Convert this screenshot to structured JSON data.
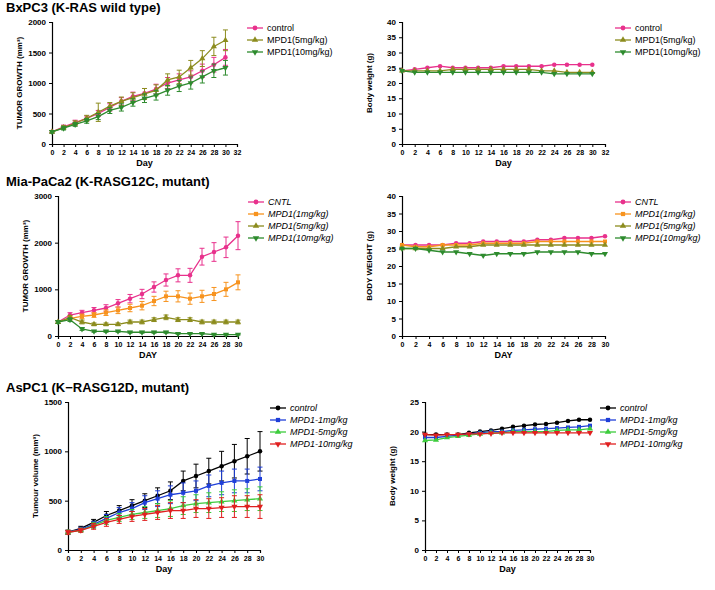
{
  "chart_data": [
    {
      "type": "line",
      "title": "BxPC3 (K-RAS wild type)",
      "x_label": "Day",
      "y_label": "TUMOR GROWTH (mm³)",
      "xlim": [
        0,
        32
      ],
      "xticks": [
        0,
        2,
        4,
        6,
        8,
        10,
        12,
        14,
        16,
        18,
        20,
        22,
        24,
        26,
        28,
        30,
        32
      ],
      "ylim": [
        0,
        2000
      ],
      "yticks": [
        0,
        500,
        1000,
        1500,
        2000
      ],
      "grid": false,
      "legend": "right",
      "x": [
        0,
        2,
        4,
        6,
        8,
        10,
        12,
        14,
        16,
        18,
        20,
        22,
        24,
        26,
        28,
        30
      ],
      "series": [
        {
          "name": "control",
          "color": "#e8318c",
          "marker": "circle",
          "values": [
            200,
            280,
            350,
            420,
            500,
            600,
            700,
            780,
            830,
            900,
            1000,
            1050,
            1100,
            1200,
            1300,
            1420
          ],
          "errors": [
            20,
            30,
            40,
            40,
            50,
            60,
            60,
            70,
            80,
            80,
            90,
            100,
            100,
            110,
            120,
            130
          ]
        },
        {
          "name": "MPD1(5mg/kg)",
          "color": "#8c8c1e",
          "marker": "triangle",
          "values": [
            200,
            270,
            340,
            420,
            520,
            620,
            700,
            760,
            820,
            880,
            1050,
            1100,
            1250,
            1400,
            1600,
            1700
          ],
          "errors": [
            20,
            30,
            40,
            50,
            150,
            60,
            70,
            80,
            90,
            90,
            100,
            110,
            120,
            130,
            150,
            170
          ]
        },
        {
          "name": "MPD1(10mg/kg)",
          "color": "#2e8b2e",
          "marker": "triangle-down",
          "values": [
            200,
            260,
            320,
            380,
            450,
            550,
            600,
            680,
            750,
            800,
            880,
            950,
            1000,
            1100,
            1200,
            1250
          ],
          "errors": [
            20,
            30,
            30,
            40,
            50,
            50,
            60,
            60,
            70,
            80,
            80,
            90,
            100,
            100,
            110,
            120
          ]
        }
      ]
    },
    {
      "type": "line",
      "x_label": "Day",
      "y_label": "Body weight (g)",
      "xlim": [
        0,
        32
      ],
      "xticks": [
        0,
        2,
        4,
        6,
        8,
        10,
        12,
        14,
        16,
        18,
        20,
        22,
        24,
        26,
        28,
        30,
        32
      ],
      "ylim": [
        0,
        40
      ],
      "yticks": [
        0,
        5,
        10,
        15,
        20,
        25,
        30,
        35,
        40
      ],
      "grid": false,
      "legend": "right",
      "x": [
        0,
        2,
        4,
        6,
        8,
        10,
        12,
        14,
        16,
        18,
        20,
        22,
        24,
        26,
        28,
        30
      ],
      "series": [
        {
          "name": "control",
          "color": "#e8318c",
          "marker": "circle",
          "values": [
            24,
            24.5,
            25,
            25.5,
            25,
            25,
            25,
            25,
            25.5,
            25.5,
            25.5,
            25.5,
            26,
            26,
            26,
            26
          ]
        },
        {
          "name": "MPD1(5mg/kg)",
          "color": "#8c8c1e",
          "marker": "triangle",
          "values": [
            24,
            24,
            24,
            24,
            24.5,
            24.5,
            24.5,
            24.5,
            24.5,
            24.5,
            24.5,
            24,
            24,
            23.5,
            23.5,
            23.5
          ]
        },
        {
          "name": "MPD1(10mg/kg)",
          "color": "#2e8b2e",
          "marker": "triangle-down",
          "values": [
            24,
            23.5,
            23.5,
            23.5,
            23.5,
            23.5,
            23.5,
            23.5,
            23.5,
            23.5,
            23.5,
            23.5,
            23,
            23,
            23,
            23
          ]
        }
      ]
    },
    {
      "type": "line",
      "title": "Mia-PaCa2 (K-RASG12C, mutant)",
      "x_label": "DAY",
      "y_label": "TUMOR GROWTH (mm³)",
      "xlim": [
        0,
        30
      ],
      "xticks": [
        0,
        2,
        4,
        6,
        8,
        10,
        12,
        14,
        16,
        18,
        20,
        22,
        24,
        26,
        28,
        30
      ],
      "ylim": [
        0,
        3000
      ],
      "yticks": [
        0,
        1000,
        2000,
        3000
      ],
      "grid": false,
      "legend": "right",
      "x": [
        0,
        2,
        4,
        6,
        8,
        10,
        12,
        14,
        16,
        18,
        20,
        22,
        24,
        26,
        28,
        30
      ],
      "series": [
        {
          "name": "CNTL",
          "color": "#e8318c",
          "marker": "circle",
          "values": [
            300,
            450,
            500,
            550,
            600,
            700,
            800,
            900,
            1050,
            1200,
            1300,
            1300,
            1700,
            1800,
            1900,
            2150
          ],
          "errors": [
            30,
            50,
            50,
            60,
            70,
            80,
            90,
            100,
            110,
            130,
            140,
            150,
            180,
            200,
            220,
            300
          ]
        },
        {
          "name": "MPD1(1mg/kg)",
          "color": "#f7931e",
          "marker": "square",
          "values": [
            300,
            380,
            420,
            450,
            500,
            550,
            600,
            650,
            750,
            850,
            850,
            800,
            850,
            900,
            1000,
            1150
          ],
          "errors": [
            30,
            40,
            50,
            50,
            60,
            70,
            80,
            90,
            100,
            110,
            120,
            120,
            130,
            140,
            150,
            160
          ]
        },
        {
          "name": "MPD1(5mg/kg)",
          "color": "#8c8c1e",
          "marker": "triangle",
          "values": [
            300,
            400,
            300,
            250,
            250,
            250,
            300,
            300,
            350,
            400,
            350,
            350,
            300,
            300,
            300,
            300
          ],
          "errors": [
            30,
            40,
            40,
            30,
            30,
            30,
            40,
            40,
            40,
            50,
            40,
            40,
            40,
            40,
            40,
            40
          ]
        },
        {
          "name": "MPD1(10mg/kg)",
          "color": "#2e8b2e",
          "marker": "triangle-down",
          "values": [
            300,
            350,
            150,
            100,
            100,
            100,
            80,
            80,
            80,
            80,
            50,
            50,
            50,
            30,
            30,
            30
          ],
          "errors": [
            30,
            40,
            30,
            20,
            20,
            20,
            20,
            20,
            20,
            20,
            10,
            10,
            10,
            10,
            10,
            10
          ]
        }
      ]
    },
    {
      "type": "line",
      "x_label": "DAY",
      "y_label": "BODY WEIGHT (g)",
      "xlim": [
        0,
        30
      ],
      "xticks": [
        0,
        2,
        4,
        6,
        8,
        10,
        12,
        14,
        16,
        18,
        20,
        22,
        24,
        26,
        28,
        30
      ],
      "ylim": [
        0,
        40
      ],
      "yticks": [
        0,
        5,
        10,
        15,
        20,
        25,
        30,
        35,
        40
      ],
      "grid": false,
      "legend": "right",
      "x": [
        0,
        2,
        4,
        6,
        8,
        10,
        12,
        14,
        16,
        18,
        20,
        22,
        24,
        26,
        28,
        30
      ],
      "series": [
        {
          "name": "CNTL",
          "color": "#e8318c",
          "marker": "circle",
          "values": [
            26,
            26,
            26,
            26,
            26.5,
            26.5,
            27,
            27,
            27,
            27,
            27.5,
            27.5,
            28,
            28,
            28,
            28.5
          ]
        },
        {
          "name": "MPD1(1mg/kg)",
          "color": "#f7931e",
          "marker": "square",
          "values": [
            26,
            25.5,
            25.5,
            26,
            26,
            26,
            26.5,
            26.5,
            26.5,
            26.5,
            27,
            27,
            27,
            27,
            27,
            27
          ]
        },
        {
          "name": "MPD1(5mg/kg)",
          "color": "#8c8c1e",
          "marker": "triangle",
          "values": [
            25,
            25,
            25,
            25,
            25.5,
            25.5,
            26,
            26,
            26,
            26,
            26,
            26,
            26,
            26,
            26,
            26
          ]
        },
        {
          "name": "MPD1(10mg/kg)",
          "color": "#2e8b2e",
          "marker": "triangle-down",
          "values": [
            25,
            25,
            24.5,
            24,
            24,
            23.5,
            23,
            23.5,
            23.5,
            23.5,
            24,
            24,
            24,
            24,
            23.5,
            23.5
          ]
        }
      ]
    },
    {
      "type": "line",
      "title": "AsPC1 (K−RASG12D, mutant)",
      "x_label": "Day",
      "y_label": "Tumour volume (mm³)",
      "xlim": [
        0,
        30
      ],
      "xticks": [
        0,
        2,
        4,
        6,
        8,
        10,
        12,
        14,
        16,
        18,
        20,
        22,
        24,
        26,
        28,
        30
      ],
      "ylim": [
        0,
        1500
      ],
      "yticks": [
        0,
        500,
        1000,
        1500
      ],
      "grid": false,
      "legend": "right",
      "x": [
        0,
        2,
        4,
        6,
        8,
        10,
        12,
        14,
        16,
        18,
        20,
        22,
        24,
        26,
        28,
        30
      ],
      "series": [
        {
          "name": "control",
          "color": "#000000",
          "marker": "circle",
          "values": [
            180,
            220,
            280,
            350,
            400,
            450,
            500,
            550,
            600,
            700,
            750,
            800,
            850,
            900,
            950,
            1000
          ],
          "errors": [
            20,
            20,
            30,
            40,
            50,
            60,
            70,
            80,
            90,
            100,
            120,
            130,
            150,
            170,
            180,
            200
          ]
        },
        {
          "name": "MPD1-1mg/kg",
          "color": "#1f3fd8",
          "marker": "square",
          "values": [
            180,
            210,
            260,
            320,
            380,
            420,
            480,
            520,
            560,
            580,
            600,
            650,
            680,
            700,
            700,
            720
          ],
          "errors": [
            20,
            20,
            30,
            40,
            50,
            60,
            70,
            80,
            90,
            100,
            100,
            110,
            120,
            120,
            120,
            120
          ]
        },
        {
          "name": "MPD1-5mg/kg",
          "color": "#3dcc3d",
          "marker": "triangle",
          "values": [
            180,
            200,
            250,
            300,
            330,
            360,
            380,
            400,
            420,
            450,
            470,
            480,
            490,
            500,
            510,
            520
          ],
          "errors": [
            20,
            20,
            30,
            40,
            40,
            50,
            60,
            70,
            80,
            90,
            90,
            100,
            100,
            110,
            110,
            120
          ]
        },
        {
          "name": "MPD1-10mg/kg",
          "color": "#e02020",
          "marker": "triangle-down",
          "values": [
            180,
            200,
            240,
            280,
            310,
            340,
            360,
            380,
            400,
            400,
            420,
            420,
            430,
            440,
            440,
            440
          ],
          "errors": [
            20,
            20,
            30,
            40,
            40,
            50,
            60,
            70,
            80,
            80,
            90,
            100,
            100,
            110,
            110,
            120
          ]
        }
      ]
    },
    {
      "type": "line",
      "x_label": "Day",
      "y_label": "Body weight (g)",
      "xlim": [
        0,
        30
      ],
      "xticks": [
        0,
        2,
        4,
        6,
        8,
        10,
        12,
        14,
        16,
        18,
        20,
        22,
        24,
        26,
        28,
        30
      ],
      "ylim": [
        0,
        25
      ],
      "yticks": [
        0,
        5,
        10,
        15,
        20,
        25
      ],
      "grid": false,
      "legend": "right",
      "x": [
        0,
        2,
        4,
        6,
        8,
        10,
        12,
        14,
        16,
        18,
        20,
        22,
        24,
        26,
        28,
        30
      ],
      "series": [
        {
          "name": "control",
          "color": "#000000",
          "marker": "circle",
          "values": [
            19.5,
            19.5,
            19.5,
            19.5,
            19.8,
            20,
            20.2,
            20.5,
            20.8,
            21,
            21.2,
            21.3,
            21.5,
            21.8,
            22,
            22
          ]
        },
        {
          "name": "MPD1-1mg/kg",
          "color": "#1f3fd8",
          "marker": "square",
          "values": [
            19,
            19,
            19.2,
            19.4,
            19.6,
            19.8,
            20,
            20,
            20.2,
            20.3,
            20.4,
            20.5,
            20.6,
            20.7,
            20.8,
            21
          ]
        },
        {
          "name": "MPD1-5mg/kg",
          "color": "#3dcc3d",
          "marker": "triangle",
          "values": [
            18.5,
            18.6,
            19,
            19.2,
            19.4,
            19.6,
            19.8,
            19.8,
            20,
            20,
            20,
            20,
            20.2,
            20.3,
            20.3,
            20.5
          ]
        },
        {
          "name": "MPD1-10mg/kg",
          "color": "#e02020",
          "marker": "triangle-down",
          "values": [
            19.5,
            19.4,
            19.5,
            19.5,
            19.6,
            19.6,
            19.7,
            19.8,
            19.8,
            19.8,
            19.8,
            19.8,
            19.8,
            19.8,
            19.8,
            19.8
          ]
        }
      ]
    }
  ]
}
